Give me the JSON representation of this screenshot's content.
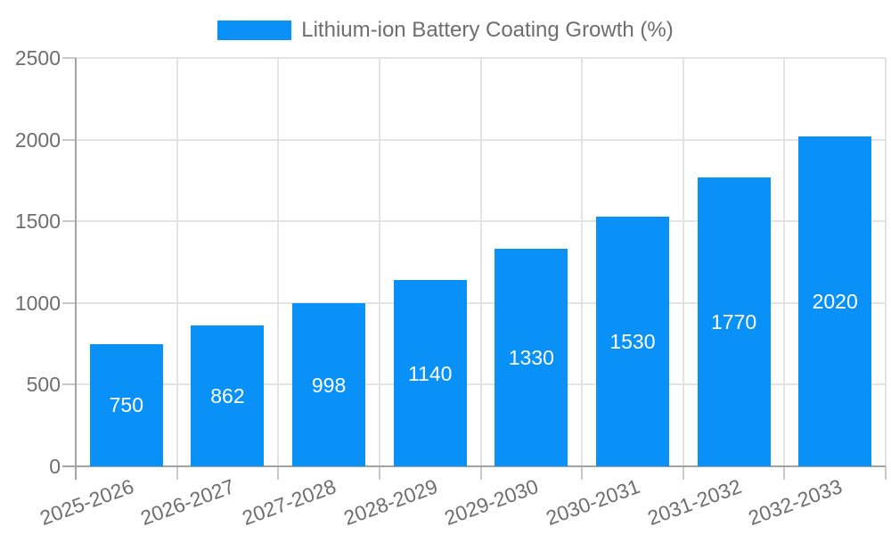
{
  "legend": {
    "label": "Lithium-ion Battery Coating Growth (%)",
    "swatch_color": "#0a91f8"
  },
  "chart_data": {
    "type": "bar",
    "title": "Lithium-ion Battery Coating Growth (%)",
    "categories": [
      "2025-2026",
      "2026-2027",
      "2027-2028",
      "2028-2029",
      "2029-2030",
      "2030-2031",
      "2031-2032",
      "2032-2033"
    ],
    "values": [
      750,
      862,
      998,
      1140,
      1330,
      1530,
      1770,
      2020
    ],
    "xlabel": "",
    "ylabel": "",
    "ylim": [
      0,
      2500
    ],
    "yticks": [
      0,
      500,
      1000,
      1500,
      2000,
      2500
    ],
    "grid": true,
    "legend_position": "top",
    "bar_color": "#0a91f8",
    "value_label_color": "#ffffff",
    "x_tick_rotation_deg": -20
  },
  "colors": {
    "background": "#ffffff",
    "gridline": "#e3e3e3",
    "axis": "#a3a3a3",
    "tick": "#c9c9c9",
    "label_text": "#6e6e6e"
  }
}
